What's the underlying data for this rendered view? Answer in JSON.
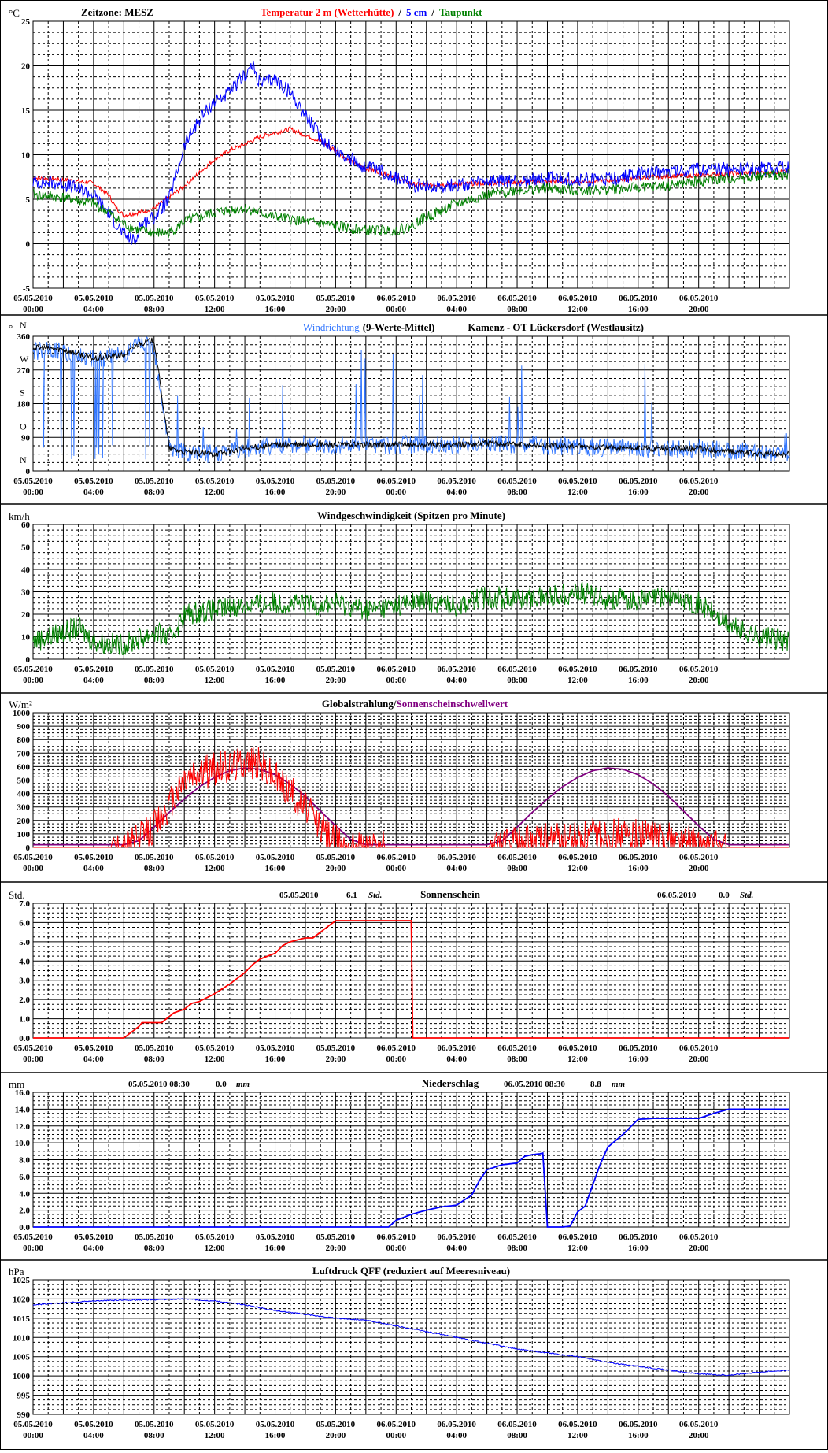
{
  "timeline": {
    "x_labels": [
      [
        "05.05.2010",
        "00:00"
      ],
      [
        "05.05.2010",
        "04:00"
      ],
      [
        "05.05.2010",
        "08:00"
      ],
      [
        "05.05.2010",
        "12:00"
      ],
      [
        "05.05.2010",
        "16:00"
      ],
      [
        "05.05.2010",
        "20:00"
      ],
      [
        "06.05.2010",
        "00:00"
      ],
      [
        "06.05.2010",
        "04:00"
      ],
      [
        "06.05.2010",
        "08:00"
      ],
      [
        "06.05.2010",
        "12:00"
      ],
      [
        "06.05.2010",
        "16:00"
      ],
      [
        "06.05.2010",
        "20:00"
      ]
    ],
    "hours_total": 50,
    "colors": {
      "red": "#ff0000",
      "blue": "#0000ff",
      "lightblue": "#3377ff",
      "green": "#008000",
      "purple": "#800080",
      "black": "#000000"
    }
  },
  "chart_data": [
    {
      "id": "temp",
      "type": "line",
      "unit": "°C",
      "ylim": [
        -5,
        25
      ],
      "yticks": [
        "25",
        "20",
        "15",
        "10",
        "5",
        "0",
        "-5"
      ],
      "title_parts": [
        {
          "text": "Zeitzone: MESZ",
          "color": "#000000"
        },
        {
          "text": "Temperatur 2 m (Wetterhütte)",
          "color": "#ff0000"
        },
        {
          "text": "/",
          "color": "#000000"
        },
        {
          "text": "5 cm",
          "color": "#0000ff"
        },
        {
          "text": "/",
          "color": "#000000"
        },
        {
          "text": "Taupunkt",
          "color": "#008000"
        }
      ],
      "series": [
        {
          "color": "#ff0000",
          "x": [
            0,
            2,
            4,
            5,
            5.5,
            6,
            7,
            8,
            9,
            10,
            11,
            12,
            13,
            14,
            15,
            16,
            17,
            18,
            19,
            20,
            21,
            22,
            23,
            24,
            25,
            26,
            28,
            30,
            32,
            34,
            36,
            38,
            40,
            42,
            44,
            46,
            48,
            50
          ],
          "y": [
            7.4,
            7.2,
            6.8,
            5.5,
            4,
            3.2,
            3.5,
            4,
            5.2,
            6.5,
            8,
            9.5,
            10.5,
            11.2,
            12,
            12.5,
            12.9,
            12.2,
            11.5,
            10.5,
            9.2,
            8.5,
            8,
            7.5,
            6.7,
            6.6,
            6.7,
            6.8,
            6.9,
            7,
            7,
            7.1,
            7.4,
            7.6,
            7.7,
            7.9,
            8,
            8.1
          ],
          "noise": 0.25
        },
        {
          "color": "#0000ff",
          "x": [
            0,
            2,
            4,
            5,
            6,
            6.8,
            7,
            8,
            9,
            9.5,
            10,
            11,
            12,
            13,
            14,
            14.5,
            15,
            16,
            17,
            18,
            19,
            20,
            21,
            22,
            23,
            24,
            25,
            26,
            28,
            30,
            32,
            34,
            36,
            38,
            40,
            42,
            44,
            46,
            48,
            50
          ],
          "y": [
            7,
            6.8,
            5.5,
            3.5,
            1,
            0.2,
            2,
            3,
            5,
            8,
            11,
            14,
            16,
            17,
            19,
            20,
            18,
            18.5,
            17,
            14.5,
            12,
            10.5,
            9.5,
            8.5,
            8.2,
            7.5,
            6.6,
            6.4,
            6.6,
            6.9,
            7.1,
            7.3,
            7.2,
            7.2,
            7.8,
            8.2,
            8.3,
            8.4,
            8.4,
            8.5
          ],
          "noise": 0.8
        },
        {
          "color": "#008000",
          "x": [
            0,
            2,
            4,
            5,
            6,
            7,
            8,
            9,
            10,
            12,
            14,
            16,
            18,
            20,
            22,
            23,
            24,
            25,
            26,
            28,
            30,
            32,
            34,
            36,
            38,
            40,
            42,
            44,
            46,
            48,
            50
          ],
          "y": [
            5.5,
            5.2,
            4.5,
            3.5,
            2.2,
            1.5,
            1.2,
            1.2,
            2.5,
            3.5,
            4,
            3,
            2.5,
            2,
            1.5,
            1.5,
            1.5,
            2,
            3,
            4.5,
            5.5,
            6,
            6.2,
            6,
            6.1,
            6.3,
            6.5,
            7,
            7.3,
            7.6,
            7.8
          ],
          "noise": 0.6
        }
      ]
    },
    {
      "id": "winddir",
      "type": "line",
      "ylim": [
        0,
        360
      ],
      "yticks": [
        "360",
        "270",
        "180",
        "90",
        "0"
      ],
      "ytick_values": [
        360,
        270,
        180,
        90,
        0
      ],
      "direction_labels": [
        {
          "text": "N",
          "value": 360
        },
        {
          "text": "W",
          "value": 270
        },
        {
          "text": "S",
          "value": 180
        },
        {
          "text": "O",
          "value": 90
        },
        {
          "text": "N",
          "value": 0
        }
      ],
      "unit": "°",
      "title_parts": [
        {
          "text": "Windrichtung",
          "color": "#3377ff"
        },
        {
          "text": "(9-Werte-Mittel)",
          "color": "#000000"
        },
        {
          "text": "Kamenz - OT Lückersdorf (Westlausitz)",
          "color": "#000000"
        }
      ],
      "series": [
        {
          "name": "raw",
          "color": "#3377ff",
          "x": [
            0,
            2,
            4,
            6,
            7,
            8,
            9,
            10,
            12,
            14,
            16,
            20,
            24,
            28,
            30,
            32,
            36,
            40,
            44,
            48,
            50
          ],
          "y": [
            320,
            320,
            300,
            310,
            340,
            330,
            60,
            50,
            45,
            60,
            70,
            70,
            70,
            70,
            75,
            70,
            65,
            60,
            60,
            50,
            40
          ],
          "noise": 25
        },
        {
          "name": "mean",
          "color": "#000000",
          "x": [
            0,
            2,
            4,
            6,
            7,
            8,
            9,
            10,
            12,
            14,
            16,
            20,
            24,
            28,
            30,
            32,
            36,
            40,
            44,
            48,
            50
          ],
          "y": [
            330,
            325,
            300,
            310,
            340,
            350,
            60,
            50,
            45,
            60,
            70,
            70,
            70,
            70,
            75,
            72,
            65,
            60,
            60,
            45,
            45
          ],
          "noise": 8
        }
      ]
    },
    {
      "id": "windspeed",
      "type": "line",
      "unit": "km/h",
      "ylim": [
        0,
        60
      ],
      "yticks": [
        "60",
        "50",
        "40",
        "30",
        "20",
        "10",
        "0"
      ],
      "title_parts": [
        {
          "text": "Windgeschwindigkeit (Spitzen pro Minute)",
          "color": "#000000"
        }
      ],
      "series": [
        {
          "color": "#008000",
          "x": [
            0,
            2,
            3,
            4,
            6,
            8,
            9,
            10,
            12,
            14,
            16,
            18,
            20,
            22,
            24,
            26,
            28,
            30,
            32,
            34,
            36,
            38,
            40,
            42,
            44,
            46,
            48,
            50
          ],
          "y": [
            8,
            12,
            14,
            8,
            6,
            12,
            9,
            20,
            22,
            24,
            25,
            24,
            25,
            22,
            24,
            26,
            24,
            28,
            27,
            28,
            30,
            27,
            26,
            28,
            25,
            15,
            10,
            8
          ],
          "noise": 5
        }
      ]
    },
    {
      "id": "radiation",
      "type": "line",
      "unit": "W/m²",
      "ylim": [
        0,
        1000
      ],
      "yticks": [
        "1000",
        "900",
        "800",
        "700",
        "600",
        "500",
        "400",
        "300",
        "200",
        "100",
        "0"
      ],
      "title_parts": [
        {
          "text": "Globalstrahlung/",
          "color": "#000000"
        },
        {
          "text": "Sonnenscheinschwellwert",
          "color": "#800080"
        }
      ],
      "series": [
        {
          "name": "threshold",
          "color": "#800080",
          "x": [
            0,
            6,
            7,
            8,
            9,
            10,
            11,
            12,
            13,
            14,
            15,
            16,
            17,
            18,
            19,
            20,
            21,
            22,
            24,
            30,
            31,
            32,
            33,
            34,
            35,
            36,
            37,
            38,
            39,
            40,
            41,
            42,
            43,
            44,
            45,
            46,
            48,
            50
          ],
          "y": [
            20,
            20,
            50,
            150,
            260,
            360,
            450,
            520,
            570,
            590,
            580,
            540,
            470,
            380,
            270,
            160,
            60,
            20,
            20,
            20,
            50,
            150,
            260,
            360,
            450,
            520,
            570,
            590,
            580,
            540,
            470,
            380,
            270,
            160,
            60,
            20,
            20,
            20
          ]
        },
        {
          "name": "global",
          "color": "#ff0000",
          "x": [
            0,
            5,
            6,
            7,
            8,
            9,
            10,
            11,
            12,
            13,
            14,
            15,
            16,
            17,
            18,
            19,
            20,
            21,
            24,
            30,
            32,
            34,
            36,
            37,
            38,
            40,
            42,
            43,
            44,
            45,
            46,
            50
          ],
          "y": [
            0,
            0,
            10,
            60,
            150,
            300,
            500,
            550,
            580,
            600,
            650,
            620,
            520,
            420,
            300,
            150,
            50,
            5,
            0,
            0,
            30,
            50,
            60,
            80,
            100,
            80,
            70,
            40,
            20,
            5,
            0,
            0
          ],
          "noise": 130
        }
      ]
    },
    {
      "id": "sunshine",
      "type": "line",
      "unit": "Std.",
      "ylim": [
        0,
        7
      ],
      "yticks": [
        "7.0",
        "6.0",
        "5.0",
        "4.0",
        "3.0",
        "2.0",
        "1.0",
        "0.0"
      ],
      "title_parts": [
        {
          "text": "Sonnenschein",
          "color": "#000000"
        }
      ],
      "summary": [
        {
          "date": "05.05.2010",
          "value": "6.1",
          "unit": "Std."
        },
        {
          "date": "06.05.2010",
          "value": "0.0",
          "unit": "Std."
        }
      ],
      "series": [
        {
          "color": "#ff0000",
          "x": [
            0,
            6,
            7,
            7.2,
            8,
            8.5,
            9.3,
            10,
            10.5,
            11,
            12,
            13,
            14,
            14.5,
            15,
            16,
            16.5,
            17,
            18,
            18.5,
            19,
            20,
            21,
            22,
            24,
            25,
            25.01,
            50
          ],
          "y": [
            0,
            0,
            0.6,
            0.8,
            0.8,
            0.8,
            1.3,
            1.5,
            1.8,
            1.9,
            2.3,
            2.8,
            3.4,
            3.8,
            4.1,
            4.4,
            4.8,
            5,
            5.2,
            5.2,
            5.5,
            6.1,
            6.1,
            6.1,
            6.1,
            6.1,
            0,
            0
          ]
        }
      ]
    },
    {
      "id": "precip",
      "type": "line",
      "unit": "mm",
      "ylim": [
        0,
        16
      ],
      "yticks": [
        "16.0",
        "14.0",
        "12.0",
        "10.0",
        "8.0",
        "6.0",
        "4.0",
        "2.0",
        "0.0"
      ],
      "title_parts": [
        {
          "text": "Niederschlag",
          "color": "#000000"
        }
      ],
      "summary": [
        {
          "date": "05.05.2010 08:30",
          "value": "0.0",
          "unit": "mm"
        },
        {
          "date": "06.05.2010 08:30",
          "value": "8.8",
          "unit": "mm"
        }
      ],
      "series": [
        {
          "color": "#0000ff",
          "x": [
            0,
            23.5,
            24,
            25,
            26,
            27,
            28,
            29,
            29.5,
            30,
            31,
            32,
            32.5,
            33,
            33.5,
            33.7,
            34,
            34.5,
            35,
            35.5,
            36,
            36.5,
            37,
            37.5,
            38,
            39,
            40,
            41,
            42,
            43,
            44,
            45,
            46,
            47,
            48,
            50
          ],
          "y": [
            0,
            0,
            0.8,
            1.5,
            2,
            2.4,
            2.6,
            3.8,
            5.5,
            6.8,
            7.4,
            7.6,
            8.4,
            8.6,
            8.7,
            8.8,
            0,
            0,
            0,
            0.1,
            1.8,
            2.5,
            5,
            7.5,
            9.5,
            11,
            12.8,
            12.9,
            12.9,
            12.9,
            12.9,
            13.5,
            14,
            14,
            14,
            14
          ]
        }
      ]
    },
    {
      "id": "pressure",
      "type": "line",
      "unit": "hPa",
      "ylim": [
        990,
        1025
      ],
      "yticks": [
        "1025",
        "1020",
        "1015",
        "1010",
        "1005",
        "1000",
        "995",
        "990"
      ],
      "title_parts": [
        {
          "text": "Luftdruck QFF (reduziert auf Meeresniveau)",
          "color": "#000000"
        }
      ],
      "series": [
        {
          "color": "#0000ff",
          "x": [
            0,
            2,
            4,
            6,
            8,
            10,
            12,
            14,
            16,
            18,
            20,
            22,
            24,
            26,
            28,
            30,
            32,
            34,
            36,
            38,
            40,
            42,
            44,
            46,
            48,
            50
          ],
          "y": [
            1018.5,
            1019,
            1019.5,
            1019.7,
            1019.8,
            1020,
            1019.5,
            1018.5,
            1017,
            1016,
            1015,
            1014.5,
            1013,
            1011.5,
            1010,
            1008.5,
            1007,
            1006,
            1005,
            1003.5,
            1002.5,
            1001.5,
            1000.5,
            1000.2,
            1001,
            1001.5
          ],
          "noise": 0.15
        }
      ]
    }
  ]
}
